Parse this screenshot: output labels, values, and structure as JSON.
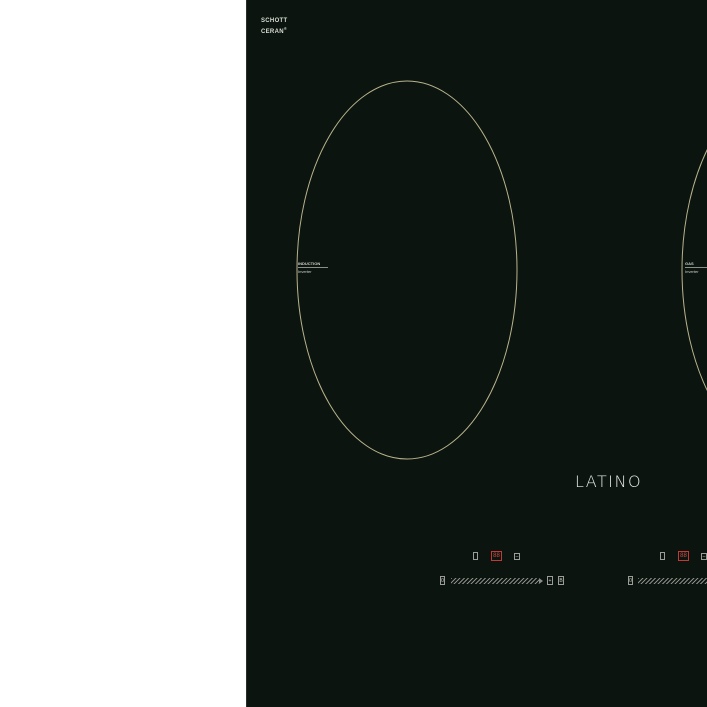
{
  "brand": {
    "line1": "SCHOTT",
    "line2": "CERAN",
    "mark": "®"
  },
  "zones": [
    {
      "title": "INDUCTION",
      "subtitle": "Inverter"
    },
    {
      "title": "GAS",
      "subtitle": "Inverter"
    }
  ],
  "logo": "LATINO",
  "controls": {
    "left": {
      "timer_icon": "power-icon",
      "display": "88",
      "minus": "–",
      "slider_start": "0",
      "plus": "+",
      "boost": "B"
    },
    "right": {
      "timer_icon": "power-icon",
      "display": "88",
      "minus": "–",
      "slider_start": "0"
    }
  },
  "colors": {
    "glass": "#0b140e",
    "zone_ring": "#b9b48c",
    "display_red": "#c23a36",
    "outline": "#9a9d98"
  }
}
